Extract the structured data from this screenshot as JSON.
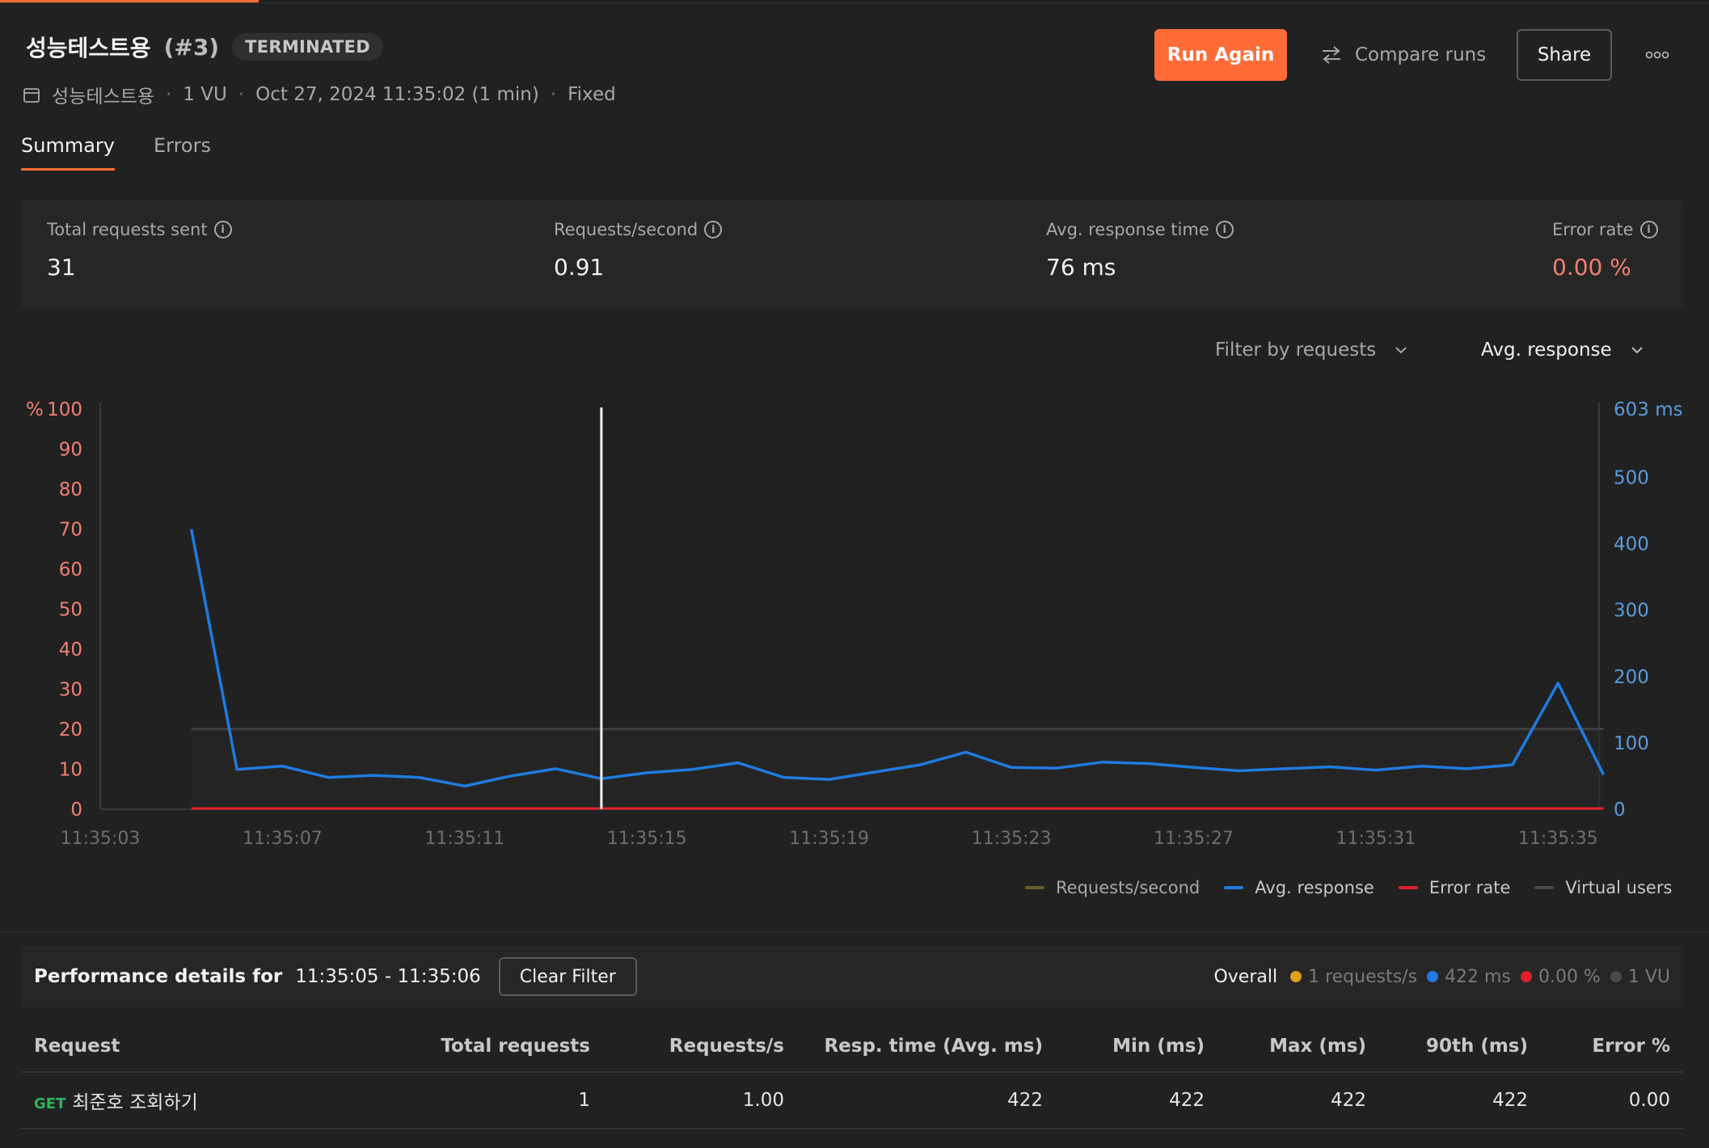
{
  "header": {
    "title": "성능테스트용",
    "run_number": "(#3)",
    "status": "TERMINATED",
    "meta": {
      "collection": "성능테스트용",
      "vus": "1 VU",
      "started": "Oct 27, 2024 11:35:02 (1 min)",
      "load_profile": "Fixed"
    },
    "actions": {
      "run_again": "Run Again",
      "compare_runs": "Compare runs",
      "share": "Share",
      "more": "ooo"
    }
  },
  "tabs": [
    {
      "label": "Summary",
      "active": true
    },
    {
      "label": "Errors",
      "active": false
    }
  ],
  "metrics": [
    {
      "label": "Total requests sent",
      "value": "31"
    },
    {
      "label": "Requests/second",
      "value": "0.91"
    },
    {
      "label": "Avg. response time",
      "value": "76 ms"
    },
    {
      "label": "Error rate",
      "value": "0.00 %"
    }
  ],
  "chart_controls": {
    "filter": "Filter by requests",
    "metric": "Avg. response"
  },
  "colors": {
    "accent": "#ff6c37",
    "avg_response": "#1f7be0",
    "error_rate": "#e0202a",
    "requests_per_second": "#b8861b",
    "virtual_users": "#4a4a4a",
    "left_axis": "#f08070",
    "right_axis": "#5b9bdc"
  },
  "chart_data": {
    "type": "line",
    "x_ticks": [
      "11:35:03",
      "11:35:07",
      "11:35:11",
      "11:35:15",
      "11:35:19",
      "11:35:23",
      "11:35:27",
      "11:35:31",
      "11:35:35"
    ],
    "left_axis": {
      "label": "%",
      "ticks": [
        "100",
        "90",
        "80",
        "70",
        "60",
        "50",
        "40",
        "30",
        "20",
        "10",
        "0"
      ],
      "ylim": [
        0,
        100
      ]
    },
    "right_axis": {
      "unit": "ms",
      "top_label": "603 ms",
      "ticks": [
        "500",
        "400",
        "300",
        "200",
        "100",
        "0"
      ],
      "ylim": [
        0,
        603
      ]
    },
    "time_range_seconds": [
      3,
      35.9
    ],
    "series": [
      {
        "name": "Avg. response",
        "axis": "right",
        "x": [
          5.0,
          6.0,
          7.0,
          8.0,
          9.0,
          10.0,
          11.0,
          12.0,
          13.0,
          14.0,
          15.0,
          16.0,
          17.0,
          18.0,
          19.0,
          20.0,
          21.0,
          22.0,
          23.0,
          24.0,
          25.0,
          26.0,
          27.0,
          28.0,
          29.0,
          30.0,
          31.0,
          32.0,
          33.0,
          34.0,
          35.0,
          36.0
        ],
        "y": [
          422,
          60,
          65,
          48,
          51,
          48,
          35,
          50,
          61,
          46,
          55,
          60,
          70,
          48,
          45,
          56,
          67,
          86,
          63,
          62,
          71,
          69,
          63,
          58,
          61,
          64,
          59,
          65,
          61,
          67,
          190,
          52
        ]
      },
      {
        "name": "Error rate",
        "axis": "left",
        "x": [
          5.0,
          36.0
        ],
        "y": [
          0,
          0
        ]
      },
      {
        "name": "Virtual users",
        "axis": "left",
        "x": [
          5.0,
          36.0
        ],
        "y": [
          20,
          20
        ]
      }
    ],
    "cursor_x": 14.0,
    "legend": [
      "Requests/second",
      "Avg. response",
      "Error rate",
      "Virtual users"
    ]
  },
  "performance": {
    "title": "Performance details for",
    "range": "11:35:05  - 11:35:06",
    "clear_filter": "Clear Filter",
    "overall_label": "Overall",
    "overall": [
      {
        "text": "1 requests/s",
        "color": "#e0a018"
      },
      {
        "text": "422 ms",
        "color": "#1f7be0"
      },
      {
        "text": "0.00 %",
        "color": "#e0202a"
      },
      {
        "text": "1 VU",
        "color": "#4a4a4a"
      }
    ],
    "columns": [
      "Request",
      "Total requests",
      "Requests/s",
      "Resp. time (Avg. ms)",
      "Min (ms)",
      "Max (ms)",
      "90th (ms)",
      "Error %"
    ],
    "rows": [
      {
        "method": "GET",
        "name": "최준호 조회하기",
        "total": "1",
        "rps": "1.00",
        "avg": "422",
        "min": "422",
        "max": "422",
        "p90": "422",
        "error": "0.00"
      }
    ]
  }
}
